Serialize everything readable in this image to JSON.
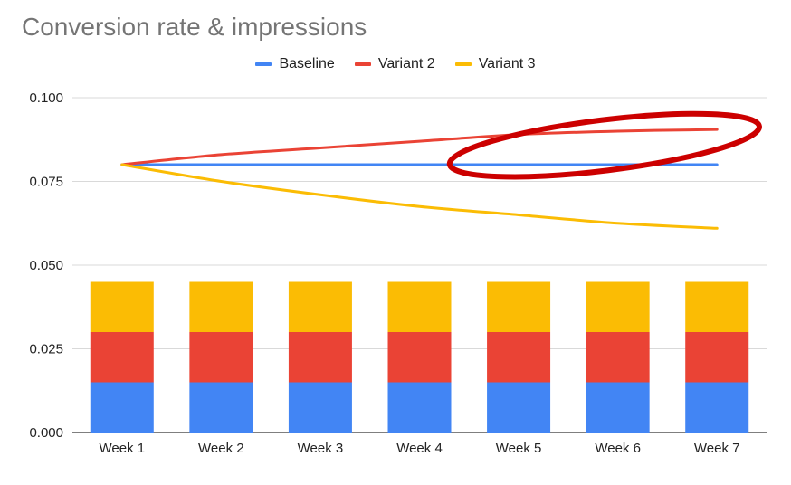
{
  "chart_data": {
    "type": "bar",
    "title": "Conversion rate & impressions",
    "xlabel": "",
    "ylabel": "",
    "categories": [
      "Week 1",
      "Week 2",
      "Week 3",
      "Week 4",
      "Week 5",
      "Week 6",
      "Week 7"
    ],
    "ylim": [
      0,
      0.1
    ],
    "yticks": [
      "0.000",
      "0.025",
      "0.050",
      "0.075",
      "0.100"
    ],
    "grid": true,
    "legend_position": "top-center",
    "bars_stacked": [
      {
        "name": "Baseline",
        "color": "#4285f4",
        "values": [
          0.015,
          0.015,
          0.015,
          0.015,
          0.015,
          0.015,
          0.015
        ]
      },
      {
        "name": "Variant 2",
        "color": "#ea4335",
        "values": [
          0.015,
          0.015,
          0.015,
          0.015,
          0.015,
          0.015,
          0.015
        ]
      },
      {
        "name": "Variant 3",
        "color": "#fbbc04",
        "values": [
          0.015,
          0.015,
          0.015,
          0.015,
          0.015,
          0.015,
          0.015
        ]
      }
    ],
    "series": [
      {
        "name": "Baseline",
        "color": "#4285f4",
        "values": [
          0.08,
          0.08,
          0.08,
          0.08,
          0.08,
          0.08,
          0.08
        ]
      },
      {
        "name": "Variant 2",
        "color": "#ea4335",
        "values": [
          0.08,
          0.083,
          0.085,
          0.087,
          0.089,
          0.09,
          0.0905
        ]
      },
      {
        "name": "Variant 3",
        "color": "#fbbc04",
        "values": [
          0.08,
          0.075,
          0.071,
          0.0675,
          0.065,
          0.0625,
          0.061
        ]
      }
    ],
    "annotation": {
      "type": "ellipse",
      "color": "#cc0000",
      "around": "Variant 2 line, Week 5 to Week 7"
    }
  }
}
